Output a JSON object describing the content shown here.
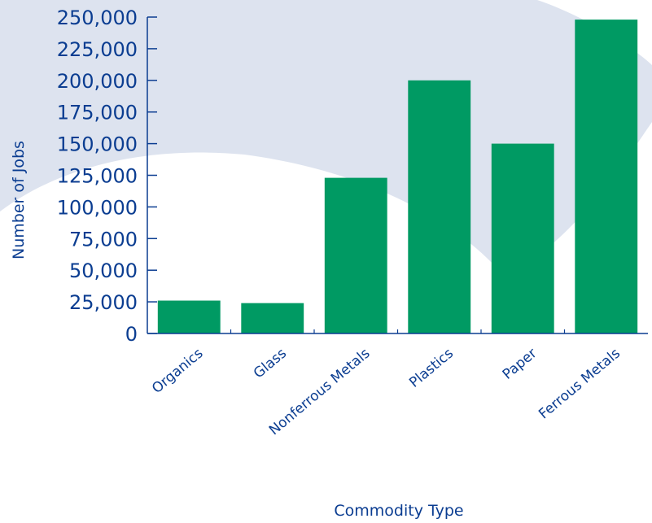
{
  "chart_data": {
    "type": "bar",
    "categories": [
      "Organics",
      "Glass",
      "Nonferrous Metals",
      "Plastics",
      "Paper",
      "Ferrous Metals"
    ],
    "values": [
      26000,
      24000,
      123000,
      200000,
      150000,
      248000
    ],
    "xlabel": "Commodity Type",
    "ylabel": "Number of Jobs",
    "ylim": [
      0,
      250000
    ],
    "yticks": [
      0,
      25000,
      50000,
      75000,
      100000,
      125000,
      150000,
      175000,
      200000,
      225000,
      250000
    ],
    "ytick_labels": [
      "0",
      "25,000",
      "50,000",
      "75,000",
      "100,000",
      "125,000",
      "150,000",
      "175,000",
      "200,000",
      "225,000",
      "250,000"
    ],
    "grid": false,
    "colors": {
      "bar": "#009a63",
      "axis": "#0b3d91",
      "text": "#0b3d91",
      "background_swoosh": "#dde3ef"
    }
  }
}
